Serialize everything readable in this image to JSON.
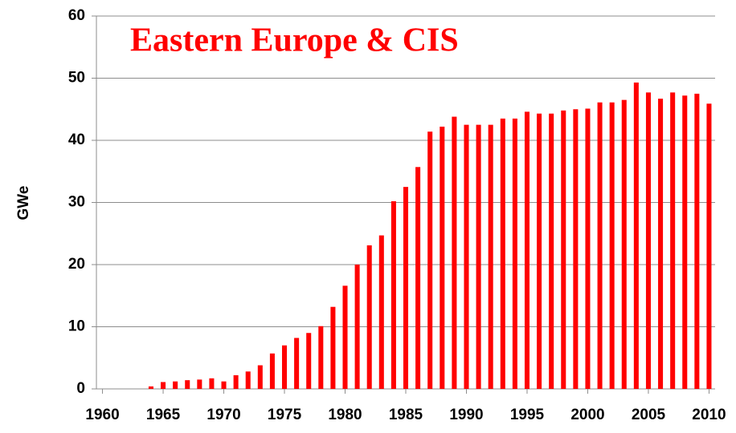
{
  "chart_data": {
    "type": "bar",
    "title": "Eastern Europe & CIS",
    "ylabel": "GWe",
    "x": [
      1964,
      1965,
      1966,
      1967,
      1968,
      1969,
      1970,
      1971,
      1972,
      1973,
      1974,
      1975,
      1976,
      1977,
      1978,
      1979,
      1980,
      1981,
      1982,
      1983,
      1984,
      1985,
      1986,
      1987,
      1988,
      1989,
      1990,
      1991,
      1992,
      1993,
      1994,
      1995,
      1996,
      1997,
      1998,
      1999,
      2000,
      2001,
      2002,
      2003,
      2004,
      2005,
      2006,
      2007,
      2008,
      2009,
      2010
    ],
    "values": [
      0.4,
      1.1,
      1.2,
      1.4,
      1.5,
      1.7,
      1.2,
      2.2,
      2.8,
      3.8,
      5.7,
      7.0,
      8.2,
      9.0,
      10.1,
      13.2,
      16.6,
      20.0,
      23.1,
      24.7,
      30.2,
      32.5,
      35.7,
      41.4,
      42.2,
      43.8,
      42.5,
      42.5,
      42.5,
      43.5,
      43.5,
      44.6,
      44.3,
      44.3,
      44.8,
      45.0,
      45.1,
      46.1,
      46.1,
      46.5,
      49.3,
      47.7,
      46.7,
      47.7,
      47.2,
      47.5,
      45.9
    ],
    "color": "#ff0000",
    "xlim": [
      1959.5,
      2010.5
    ],
    "xticks": [
      1960,
      1965,
      1970,
      1975,
      1980,
      1985,
      1990,
      1995,
      2000,
      2005,
      2010
    ],
    "ylim": [
      0,
      60
    ],
    "yticks": [
      0,
      10,
      20,
      30,
      40,
      50,
      60
    ],
    "grid": true
  }
}
